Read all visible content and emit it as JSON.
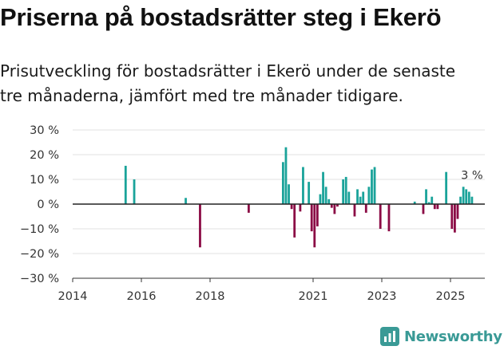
{
  "title": "Priserna på bostadsrätter steg i Ekerö",
  "subtitle_line1": "Prisutveckling för bostadsrätter i Ekerö under de senaste",
  "subtitle_line2": "tre månaderna, jämfört med tre månader tidigare.",
  "brand": "Newsworthy",
  "colors": {
    "positive": "#1aa39a",
    "negative": "#8b0b45",
    "zero_line": "#222222",
    "grid": "#e0e0e0",
    "brand": "#3a9a96"
  },
  "chart_data": {
    "type": "bar",
    "title": "Priserna på bostadsrätter steg i Ekerö",
    "xlabel": "",
    "ylabel": "",
    "y_unit": "%",
    "ylim": [
      -30,
      30
    ],
    "y_ticks": [
      30,
      20,
      10,
      0,
      -10,
      -20,
      -30
    ],
    "y_tick_labels": [
      "30 %",
      "20 %",
      "10 %",
      "0 %",
      "−10 %",
      "−20 %",
      "−30 %"
    ],
    "x_ticks": [
      2014,
      2016,
      2018,
      2021,
      2023,
      2025
    ],
    "x_tick_labels": [
      "2014",
      "2016",
      "2018",
      "2021",
      "2023",
      "2025"
    ],
    "x_range": [
      "2014-01",
      "2026-01"
    ],
    "grid": "horizontal",
    "annotation": {
      "text": "3 %",
      "x": "2025-08",
      "y": 3
    },
    "bars": [
      {
        "x": "2015-07",
        "y": 15.5
      },
      {
        "x": "2015-10",
        "y": 10
      },
      {
        "x": "2017-04",
        "y": 2.5
      },
      {
        "x": "2017-09",
        "y": -17.5
      },
      {
        "x": "2019-02",
        "y": -3.5
      },
      {
        "x": "2020-02",
        "y": 17
      },
      {
        "x": "2020-03",
        "y": 23
      },
      {
        "x": "2020-04",
        "y": 8
      },
      {
        "x": "2020-05",
        "y": -2
      },
      {
        "x": "2020-06",
        "y": -13.5
      },
      {
        "x": "2020-08",
        "y": -3
      },
      {
        "x": "2020-09",
        "y": 15
      },
      {
        "x": "2020-11",
        "y": 9
      },
      {
        "x": "2020-12",
        "y": -11
      },
      {
        "x": "2021-01",
        "y": -17.5
      },
      {
        "x": "2021-02",
        "y": -9
      },
      {
        "x": "2021-03",
        "y": 4
      },
      {
        "x": "2021-04",
        "y": 13
      },
      {
        "x": "2021-05",
        "y": 7
      },
      {
        "x": "2021-06",
        "y": 2
      },
      {
        "x": "2021-07",
        "y": -1.5
      },
      {
        "x": "2021-08",
        "y": -4
      },
      {
        "x": "2021-09",
        "y": -1
      },
      {
        "x": "2021-11",
        "y": 10
      },
      {
        "x": "2021-12",
        "y": 11
      },
      {
        "x": "2022-01",
        "y": 5
      },
      {
        "x": "2022-03",
        "y": -5
      },
      {
        "x": "2022-04",
        "y": 6
      },
      {
        "x": "2022-05",
        "y": 3
      },
      {
        "x": "2022-06",
        "y": 5
      },
      {
        "x": "2022-07",
        "y": -3.5
      },
      {
        "x": "2022-08",
        "y": 7
      },
      {
        "x": "2022-09",
        "y": 14
      },
      {
        "x": "2022-10",
        "y": 15
      },
      {
        "x": "2022-12",
        "y": -10
      },
      {
        "x": "2023-03",
        "y": -11
      },
      {
        "x": "2023-12",
        "y": 1
      },
      {
        "x": "2024-03",
        "y": -4
      },
      {
        "x": "2024-04",
        "y": 6
      },
      {
        "x": "2024-05",
        "y": 0.8
      },
      {
        "x": "2024-06",
        "y": 3
      },
      {
        "x": "2024-07",
        "y": -2
      },
      {
        "x": "2024-08",
        "y": -2
      },
      {
        "x": "2024-11",
        "y": 13
      },
      {
        "x": "2025-01",
        "y": -10
      },
      {
        "x": "2025-02",
        "y": -11.5
      },
      {
        "x": "2025-03",
        "y": -6
      },
      {
        "x": "2025-04",
        "y": 3
      },
      {
        "x": "2025-05",
        "y": 7
      },
      {
        "x": "2025-06",
        "y": 6
      },
      {
        "x": "2025-07",
        "y": 5
      },
      {
        "x": "2025-08",
        "y": 3
      }
    ]
  }
}
